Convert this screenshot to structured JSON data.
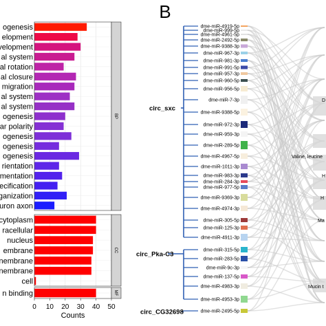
{
  "chart_data": [
    {
      "type": "bar",
      "orientation": "horizontal",
      "panel_label": "",
      "xlabel": "Counts",
      "ylabel": "",
      "xlim": [
        0,
        50
      ],
      "xticks": [
        "0",
        "10",
        "20",
        "30",
        "40",
        "50"
      ],
      "grid": true,
      "facets": [
        {
          "strip": "BP",
          "categories": [
            "ogenesis",
            "elopment",
            "velopment",
            "al system",
            "al rotation",
            "al closure",
            "migration",
            "al system",
            "al system",
            "ogenesis",
            "ar polarity",
            "ogenesis",
            "ogenesis",
            "ogenesis",
            "rientation",
            "mentation",
            "pecification",
            "ganization",
            "uron axon"
          ],
          "values": [
            34,
            28,
            30,
            26,
            19,
            27,
            26,
            23,
            26,
            20,
            19,
            24,
            16,
            29,
            16,
            18,
            15,
            21,
            13
          ],
          "colors": [
            "#ff1a00",
            "#ee0a47",
            "#d5147e",
            "#c91c91",
            "#be23a6",
            "#b327b3",
            "#a829bb",
            "#9d30c4",
            "#9630c6",
            "#8e30cd",
            "#8530d4",
            "#7e30d8",
            "#752cde",
            "#6a28e2",
            "#5e26e8",
            "#5222ec",
            "#441ff1",
            "#311ff6",
            "#1a1cff"
          ]
        },
        {
          "strip": "CC",
          "categories": [
            "cytoplasm",
            "racellular",
            "nucleus",
            "embrane",
            "nembrane",
            "nembrane",
            "cell"
          ],
          "values": [
            40,
            40,
            38,
            38,
            37,
            37,
            1
          ],
          "colors": [
            "#ff0000",
            "#ff0000",
            "#ff0000",
            "#ff0000",
            "#ff0000",
            "#ff0000",
            "#ff0000"
          ]
        },
        {
          "strip": "MF",
          "categories": [
            "n binding"
          ],
          "values": [
            40
          ],
          "colors": [
            "#ff0000"
          ]
        }
      ]
    },
    {
      "type": "sankey",
      "panel_label": "B",
      "sources": [
        {
          "name": "circ_sxc",
          "targets": [
            "dme-miR-4919-5p",
            "dme-miR-999-5p",
            "dme-miR-4961-5p",
            "dme-miR-2492-5p",
            "dme-miR-9388-3p",
            "dme-miR-967-3p",
            "dme-miR-981-3p",
            "dme-miR-991-5p",
            "dme-miR-957-3p",
            "dme-miR-960-5p",
            "dme-miR-956-5p",
            "dme-miR-7-3p",
            "dme-miR-9388-5p",
            "dme-miR-972-3p",
            "dme-miR-959-3p",
            "dme-miR-289-5p",
            "dme-miR-4967-5p",
            "dme-miR-1011-3p",
            "dme-miR-983-3p",
            "dme-miR-284-3p",
            "dme-miR-977-5p",
            "dme-miR-9369-3p",
            "dme-miR-4974-3p",
            "dme-miR-305-5p",
            "dme-miR-125-3p",
            "dme-miR-4911-3p"
          ]
        },
        {
          "name": "circ_Pka-C3",
          "targets": [
            "dme-miR-315-5p",
            "dme-miR-283-5p",
            "dme-miR-9c-3p",
            "dme-miR-137-5p",
            "dme-miR-4983-3p",
            "dme-miR-4953-3p"
          ]
        },
        {
          "name": "circ_CG32698",
          "targets": [
            "dme-miR-2495-5p"
          ]
        }
      ],
      "mirnas": [
        {
          "name": "dme-miR-4919-5p",
          "color": "#f4a460"
        },
        {
          "name": "dme-miR-999-5p",
          "color": "#e8e8e8"
        },
        {
          "name": "dme-miR-4961-5p",
          "color": "#e2e2e2"
        },
        {
          "name": "dme-miR-2492-5p",
          "color": "#8b8b6b"
        },
        {
          "name": "dme-miR-9388-3p",
          "color": "#c8a8d8"
        },
        {
          "name": "dme-miR-967-3p",
          "color": "#9bd1e8"
        },
        {
          "name": "dme-miR-981-3p",
          "color": "#4a7ed0"
        },
        {
          "name": "dme-miR-991-5p",
          "color": "#3b4ba8"
        },
        {
          "name": "dme-miR-957-3p",
          "color": "#f0c8a0"
        },
        {
          "name": "dme-miR-960-5p",
          "color": "#3c5050"
        },
        {
          "name": "dme-miR-956-5p",
          "color": "#f6ebd2"
        },
        {
          "name": "dme-miR-7-3p",
          "color": "#f0f0f0"
        },
        {
          "name": "dme-miR-9388-5p",
          "color": "#fbf2e0"
        },
        {
          "name": "dme-miR-972-3p",
          "color": "#1c2a7a"
        },
        {
          "name": "dme-miR-959-3p",
          "color": "#f4f4f4"
        },
        {
          "name": "dme-miR-289-5p",
          "color": "#3fb24a"
        },
        {
          "name": "dme-miR-4967-5p",
          "color": "#f7eedd"
        },
        {
          "name": "dme-miR-1011-3p",
          "color": "#a98ad0"
        },
        {
          "name": "dme-miR-983-3p",
          "color": "#2c3a8c"
        },
        {
          "name": "dme-miR-284-3p",
          "color": "#e84a5a"
        },
        {
          "name": "dme-miR-977-5p",
          "color": "#5b7cc8"
        },
        {
          "name": "dme-miR-9369-3p",
          "color": "#d8dc9c"
        },
        {
          "name": "dme-miR-4974-3p",
          "color": "#f5e8d6"
        },
        {
          "name": "dme-miR-305-5p",
          "color": "#9c3a3a"
        },
        {
          "name": "dme-miR-125-3p",
          "color": "#e07050"
        },
        {
          "name": "dme-miR-4911-3p",
          "color": "#b8d4f0"
        },
        {
          "name": "dme-miR-315-5p",
          "color": "#2ab4cc"
        },
        {
          "name": "dme-miR-283-5p",
          "color": "#2a50a8"
        },
        {
          "name": "dme-miR-9c-3p",
          "color": "#f6f6f6"
        },
        {
          "name": "dme-miR-137-5p",
          "color": "#d858c8"
        },
        {
          "name": "dme-miR-4983-3p",
          "color": "#f0ece0"
        },
        {
          "name": "dme-miR-4953-3p",
          "color": "#90d890"
        },
        {
          "name": "dme-miR-2495-5p",
          "color": "#c8c838"
        }
      ],
      "pathway_labels": [
        {
          "text": "D",
          "mirna_index": 11
        },
        {
          "text": "Valine, leucine",
          "mirna_index": 16
        },
        {
          "text": "H",
          "mirna_index": 18
        },
        {
          "text": "H",
          "mirna_index": 21
        },
        {
          "text": "Ma",
          "mirna_index": 23
        },
        {
          "text": "Mucin t",
          "mirna_index": 30
        }
      ]
    }
  ]
}
